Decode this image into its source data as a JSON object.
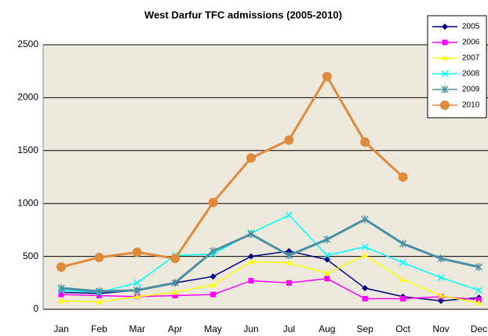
{
  "chart_data": {
    "type": "line",
    "title": "West Darfur TFC admissions (2005-2010)",
    "categories": [
      "Jan",
      "Feb",
      "Mar",
      "Apr",
      "May",
      "Jun",
      "Jul",
      "Aug",
      "Sep",
      "Oct",
      "Nov",
      "Dec"
    ],
    "series": [
      {
        "name": "2005",
        "color": "#000080",
        "values": [
          160,
          150,
          180,
          250,
          310,
          500,
          550,
          470,
          200,
          120,
          80,
          110
        ]
      },
      {
        "name": "2006",
        "color": "#ff00ff",
        "values": [
          140,
          130,
          120,
          130,
          140,
          270,
          250,
          290,
          100,
          100,
          120,
          90
        ]
      },
      {
        "name": "2007",
        "color": "#ffff00",
        "values": [
          80,
          70,
          120,
          160,
          230,
          450,
          440,
          340,
          510,
          280,
          130,
          60
        ]
      },
      {
        "name": "2008",
        "color": "#00ffff",
        "values": [
          180,
          160,
          250,
          510,
          520,
          720,
          890,
          510,
          590,
          440,
          300,
          180
        ]
      },
      {
        "name": "2009",
        "color": "#4a90a4",
        "values": [
          200,
          170,
          180,
          250,
          550,
          710,
          510,
          660,
          850,
          620,
          480,
          400
        ]
      },
      {
        "name": "2010",
        "color": "#e08a3c",
        "values": [
          400,
          490,
          540,
          480,
          1010,
          1430,
          1600,
          2200,
          1580,
          1250,
          null,
          null
        ]
      }
    ],
    "ylim": [
      0,
      2500
    ],
    "yticks": [
      0,
      500,
      1000,
      1500,
      2000,
      2500
    ],
    "grid": true,
    "legend": "top-right"
  }
}
